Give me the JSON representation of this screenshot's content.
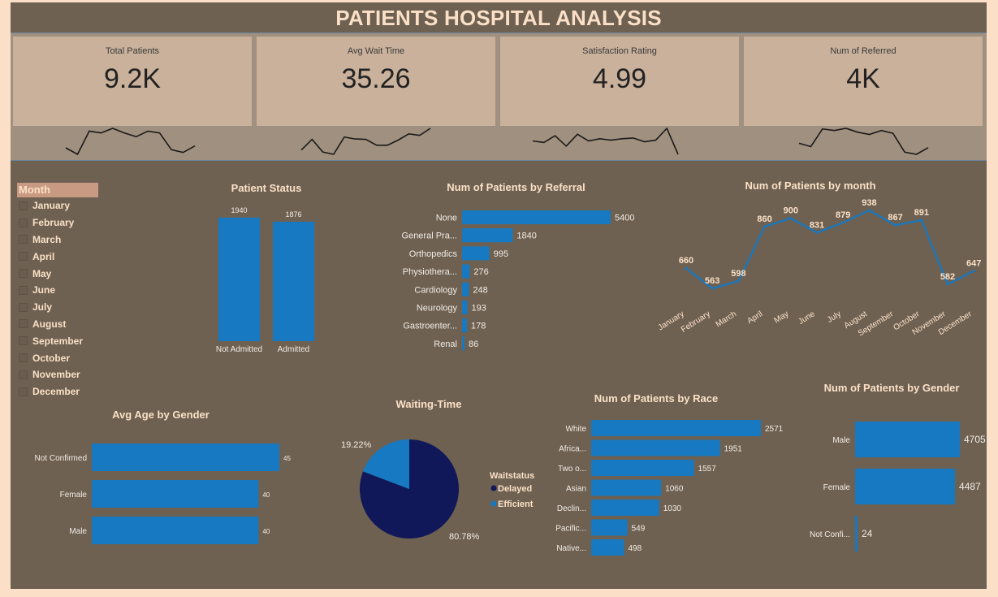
{
  "title": "PATIENTS HOSPITAL ANALYSIS",
  "colors": {
    "bar": "#1679c2",
    "pie_dark": "#101859",
    "background": "#6e6152",
    "card": "#c9b19b",
    "text_light": "#fbe0c7"
  },
  "kpis": [
    {
      "label": "Total Patients",
      "value": "9.2K",
      "trend": [
        62,
        55,
        80,
        78,
        83,
        78,
        74,
        80,
        78,
        60,
        57,
        64
      ]
    },
    {
      "label": "Avg Wait Time",
      "value": "35.26",
      "trend": [
        55,
        82,
        50,
        44,
        88,
        83,
        82,
        67,
        67,
        80,
        96,
        92,
        110
      ]
    },
    {
      "label": "Satisfaction Rating",
      "value": "4.99",
      "trend": [
        63,
        61,
        70,
        56,
        72,
        63,
        66,
        64,
        66,
        67,
        62,
        64,
        80,
        45
      ]
    },
    {
      "label": "Num of Referred",
      "value": "4K",
      "trend": [
        60,
        54,
        86,
        83,
        87,
        80,
        76,
        83,
        78,
        44,
        40,
        52
      ]
    }
  ],
  "slicer": {
    "header": "Month",
    "items": [
      "January",
      "February",
      "March",
      "April",
      "May",
      "June",
      "July",
      "August",
      "September",
      "October",
      "November",
      "December"
    ]
  },
  "chart_data": [
    {
      "type": "bar",
      "title": "Patient Status",
      "categories": [
        "Not Admitted",
        "Admitted"
      ],
      "values": [
        1940,
        1876
      ]
    },
    {
      "type": "bar",
      "orientation": "horizontal",
      "title": "Num of Patients by Referral",
      "categories": [
        "None",
        "General Pra...",
        "Orthopedics",
        "Physiothera...",
        "Cardiology",
        "Neurology",
        "Gastroenter...",
        "Renal"
      ],
      "values": [
        5400,
        1840,
        995,
        276,
        248,
        193,
        178,
        86
      ]
    },
    {
      "type": "line",
      "title": "Num of Patients by month",
      "categories": [
        "January",
        "February",
        "March",
        "April",
        "May",
        "June",
        "July",
        "August",
        "September",
        "October",
        "November",
        "December"
      ],
      "values": [
        660,
        563,
        598,
        860,
        900,
        831,
        879,
        938,
        867,
        891,
        582,
        647
      ]
    },
    {
      "type": "bar",
      "orientation": "horizontal",
      "title": "Avg Age by Gender",
      "categories": [
        "Not Confirmed",
        "Female",
        "Male"
      ],
      "values": [
        45,
        40,
        40
      ]
    },
    {
      "type": "pie",
      "title": "Waiting-Time",
      "legend_title": "Waitstatus",
      "labels": [
        "Delayed",
        "Efficient"
      ],
      "values": [
        80.78,
        19.22
      ],
      "value_labels": [
        "80.78%",
        "19.22%"
      ]
    },
    {
      "type": "bar",
      "orientation": "horizontal",
      "title": "Num of Patients by Race",
      "categories": [
        "White",
        "Africa...",
        "Two o...",
        "Asian",
        "Declin...",
        "Pacific...",
        "Native..."
      ],
      "values": [
        2571,
        1951,
        1557,
        1060,
        1030,
        549,
        498
      ]
    },
    {
      "type": "bar",
      "orientation": "horizontal",
      "title": "Num of Patients by Gender",
      "categories": [
        "Male",
        "Female",
        "Not Confi..."
      ],
      "values": [
        4705,
        4487,
        24
      ]
    }
  ]
}
